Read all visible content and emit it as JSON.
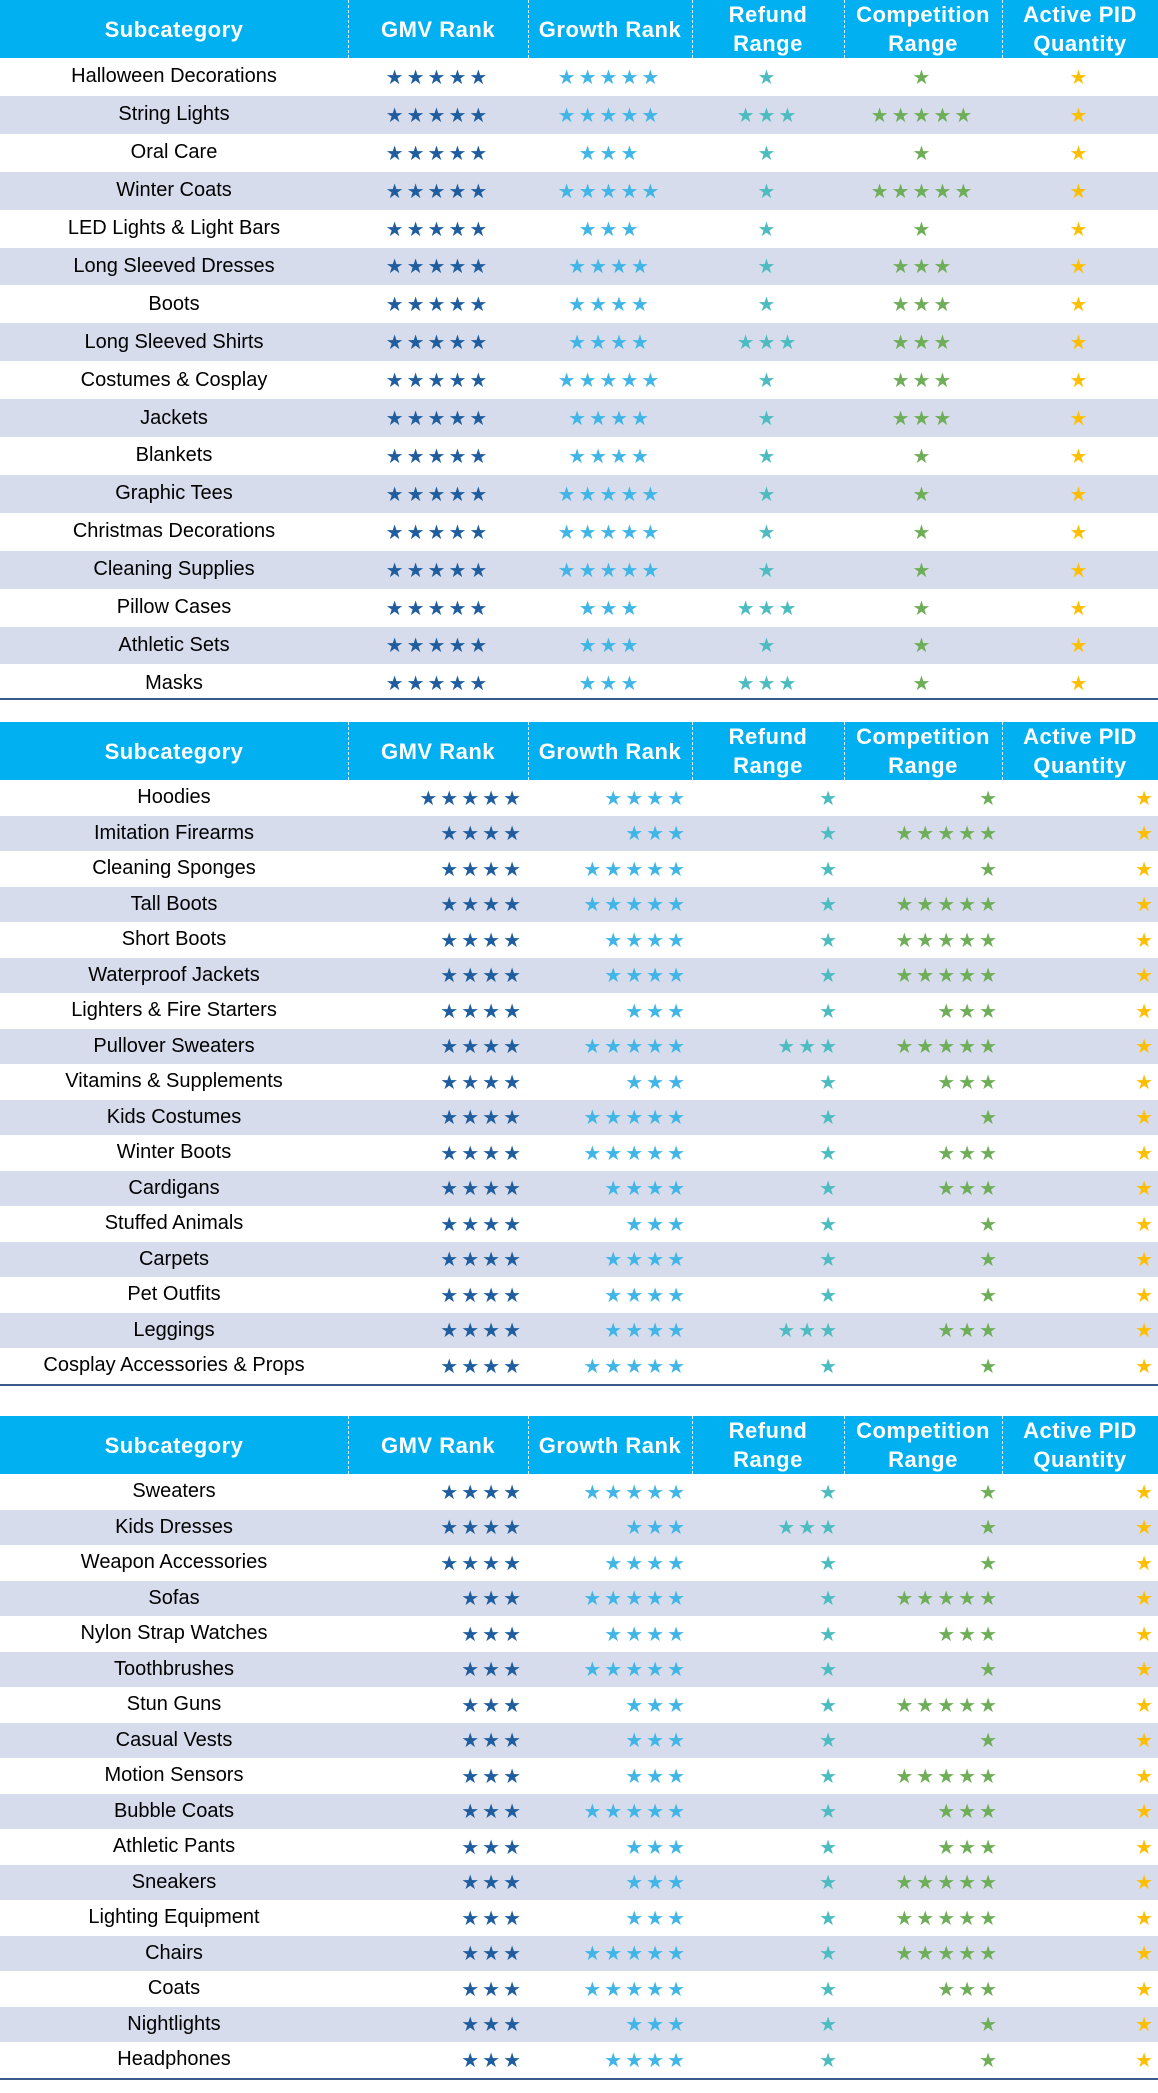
{
  "header": {
    "subcategory": "Subcategory",
    "gmv_rank": "GMV Rank",
    "growth_rank": "Growth Rank",
    "refund_range": "Refund\nRange",
    "competition_range": "Competition\nRange",
    "active_pid_quantity": "Active PID\nQuantity"
  },
  "colors": {
    "header_bg": "#00b0f0",
    "row_alt_bg": "#d6dcec",
    "gmv_star": "#1f5d9f",
    "growth_star": "#41b6e6",
    "refund_star": "#4dbcc0",
    "competition_star": "#6fae59",
    "pid_star": "#ffbf00"
  },
  "rating_columns": [
    "gmv",
    "growth",
    "refund",
    "competition",
    "pid"
  ],
  "tables": [
    {
      "rows": [
        {
          "name": "Halloween Decorations",
          "gmv": 5,
          "growth": 5,
          "refund": 1,
          "competition": 1,
          "pid": 1
        },
        {
          "name": "String Lights",
          "gmv": 5,
          "growth": 5,
          "refund": 3,
          "competition": 5,
          "pid": 1
        },
        {
          "name": "Oral Care",
          "gmv": 5,
          "growth": 3,
          "refund": 1,
          "competition": 1,
          "pid": 1
        },
        {
          "name": "Winter Coats",
          "gmv": 5,
          "growth": 5,
          "refund": 1,
          "competition": 5,
          "pid": 1
        },
        {
          "name": "LED Lights & Light Bars",
          "gmv": 5,
          "growth": 3,
          "refund": 1,
          "competition": 1,
          "pid": 1
        },
        {
          "name": "Long Sleeved Dresses",
          "gmv": 5,
          "growth": 4,
          "refund": 1,
          "competition": 3,
          "pid": 1
        },
        {
          "name": "Boots",
          "gmv": 5,
          "growth": 4,
          "refund": 1,
          "competition": 3,
          "pid": 1
        },
        {
          "name": "Long Sleeved Shirts",
          "gmv": 5,
          "growth": 4,
          "refund": 3,
          "competition": 3,
          "pid": 1
        },
        {
          "name": "Costumes & Cosplay",
          "gmv": 5,
          "growth": 5,
          "refund": 1,
          "competition": 3,
          "pid": 1
        },
        {
          "name": "Jackets",
          "gmv": 5,
          "growth": 4,
          "refund": 1,
          "competition": 3,
          "pid": 1
        },
        {
          "name": "Blankets",
          "gmv": 5,
          "growth": 4,
          "refund": 1,
          "competition": 1,
          "pid": 1
        },
        {
          "name": "Graphic Tees",
          "gmv": 5,
          "growth": 5,
          "refund": 1,
          "competition": 1,
          "pid": 1
        },
        {
          "name": "Christmas Decorations",
          "gmv": 5,
          "growth": 5,
          "refund": 1,
          "competition": 1,
          "pid": 1
        },
        {
          "name": "Cleaning Supplies",
          "gmv": 5,
          "growth": 5,
          "refund": 1,
          "competition": 1,
          "pid": 1
        },
        {
          "name": "Pillow Cases",
          "gmv": 5,
          "growth": 3,
          "refund": 3,
          "competition": 1,
          "pid": 1
        },
        {
          "name": "Athletic Sets",
          "gmv": 5,
          "growth": 3,
          "refund": 1,
          "competition": 1,
          "pid": 1
        },
        {
          "name": "Masks",
          "gmv": 5,
          "growth": 3,
          "refund": 3,
          "competition": 1,
          "pid": 1
        }
      ]
    },
    {
      "rows": [
        {
          "name": "Hoodies",
          "gmv": 5,
          "growth": 4,
          "refund": 1,
          "competition": 1,
          "pid": 1
        },
        {
          "name": "Imitation Firearms",
          "gmv": 4,
          "growth": 3,
          "refund": 1,
          "competition": 5,
          "pid": 1
        },
        {
          "name": "Cleaning Sponges",
          "gmv": 4,
          "growth": 5,
          "refund": 1,
          "competition": 1,
          "pid": 1
        },
        {
          "name": "Tall Boots",
          "gmv": 4,
          "growth": 5,
          "refund": 1,
          "competition": 5,
          "pid": 1
        },
        {
          "name": "Short Boots",
          "gmv": 4,
          "growth": 4,
          "refund": 1,
          "competition": 5,
          "pid": 1
        },
        {
          "name": "Waterproof Jackets",
          "gmv": 4,
          "growth": 4,
          "refund": 1,
          "competition": 5,
          "pid": 1
        },
        {
          "name": "Lighters & Fire Starters",
          "gmv": 4,
          "growth": 3,
          "refund": 1,
          "competition": 3,
          "pid": 1
        },
        {
          "name": "Pullover Sweaters",
          "gmv": 4,
          "growth": 5,
          "refund": 3,
          "competition": 5,
          "pid": 1
        },
        {
          "name": "Vitamins & Supplements",
          "gmv": 4,
          "growth": 3,
          "refund": 1,
          "competition": 3,
          "pid": 1
        },
        {
          "name": "Kids Costumes",
          "gmv": 4,
          "growth": 5,
          "refund": 1,
          "competition": 1,
          "pid": 1
        },
        {
          "name": "Winter Boots",
          "gmv": 4,
          "growth": 5,
          "refund": 1,
          "competition": 3,
          "pid": 1
        },
        {
          "name": "Cardigans",
          "gmv": 4,
          "growth": 4,
          "refund": 1,
          "competition": 3,
          "pid": 1
        },
        {
          "name": "Stuffed Animals",
          "gmv": 4,
          "growth": 3,
          "refund": 1,
          "competition": 1,
          "pid": 1
        },
        {
          "name": "Carpets",
          "gmv": 4,
          "growth": 4,
          "refund": 1,
          "competition": 1,
          "pid": 1
        },
        {
          "name": "Pet Outfits",
          "gmv": 4,
          "growth": 4,
          "refund": 1,
          "competition": 1,
          "pid": 1
        },
        {
          "name": "Leggings",
          "gmv": 4,
          "growth": 4,
          "refund": 3,
          "competition": 3,
          "pid": 1
        },
        {
          "name": "Cosplay Accessories & Props",
          "gmv": 4,
          "growth": 5,
          "refund": 1,
          "competition": 1,
          "pid": 1
        }
      ]
    },
    {
      "rows": [
        {
          "name": "Sweaters",
          "gmv": 4,
          "growth": 5,
          "refund": 1,
          "competition": 1,
          "pid": 1
        },
        {
          "name": "Kids Dresses",
          "gmv": 4,
          "growth": 3,
          "refund": 3,
          "competition": 1,
          "pid": 1
        },
        {
          "name": "Weapon Accessories",
          "gmv": 4,
          "growth": 4,
          "refund": 1,
          "competition": 1,
          "pid": 1
        },
        {
          "name": "Sofas",
          "gmv": 3,
          "growth": 5,
          "refund": 1,
          "competition": 5,
          "pid": 1
        },
        {
          "name": "Nylon Strap Watches",
          "gmv": 3,
          "growth": 4,
          "refund": 1,
          "competition": 3,
          "pid": 1
        },
        {
          "name": "Toothbrushes",
          "gmv": 3,
          "growth": 5,
          "refund": 1,
          "competition": 1,
          "pid": 1
        },
        {
          "name": "Stun Guns",
          "gmv": 3,
          "growth": 3,
          "refund": 1,
          "competition": 5,
          "pid": 1
        },
        {
          "name": "Casual Vests",
          "gmv": 3,
          "growth": 3,
          "refund": 1,
          "competition": 1,
          "pid": 1
        },
        {
          "name": "Motion Sensors",
          "gmv": 3,
          "growth": 3,
          "refund": 1,
          "competition": 5,
          "pid": 1
        },
        {
          "name": "Bubble Coats",
          "gmv": 3,
          "growth": 5,
          "refund": 1,
          "competition": 3,
          "pid": 1
        },
        {
          "name": "Athletic Pants",
          "gmv": 3,
          "growth": 3,
          "refund": 1,
          "competition": 3,
          "pid": 1
        },
        {
          "name": "Sneakers",
          "gmv": 3,
          "growth": 3,
          "refund": 1,
          "competition": 5,
          "pid": 1
        },
        {
          "name": "Lighting Equipment",
          "gmv": 3,
          "growth": 3,
          "refund": 1,
          "competition": 5,
          "pid": 1
        },
        {
          "name": "Chairs",
          "gmv": 3,
          "growth": 5,
          "refund": 1,
          "competition": 5,
          "pid": 1
        },
        {
          "name": "Coats",
          "gmv": 3,
          "growth": 5,
          "refund": 1,
          "competition": 3,
          "pid": 1
        },
        {
          "name": "Nightlights",
          "gmv": 3,
          "growth": 3,
          "refund": 1,
          "competition": 1,
          "pid": 1
        },
        {
          "name": "Headphones",
          "gmv": 3,
          "growth": 4,
          "refund": 1,
          "competition": 1,
          "pid": 1
        }
      ]
    }
  ]
}
